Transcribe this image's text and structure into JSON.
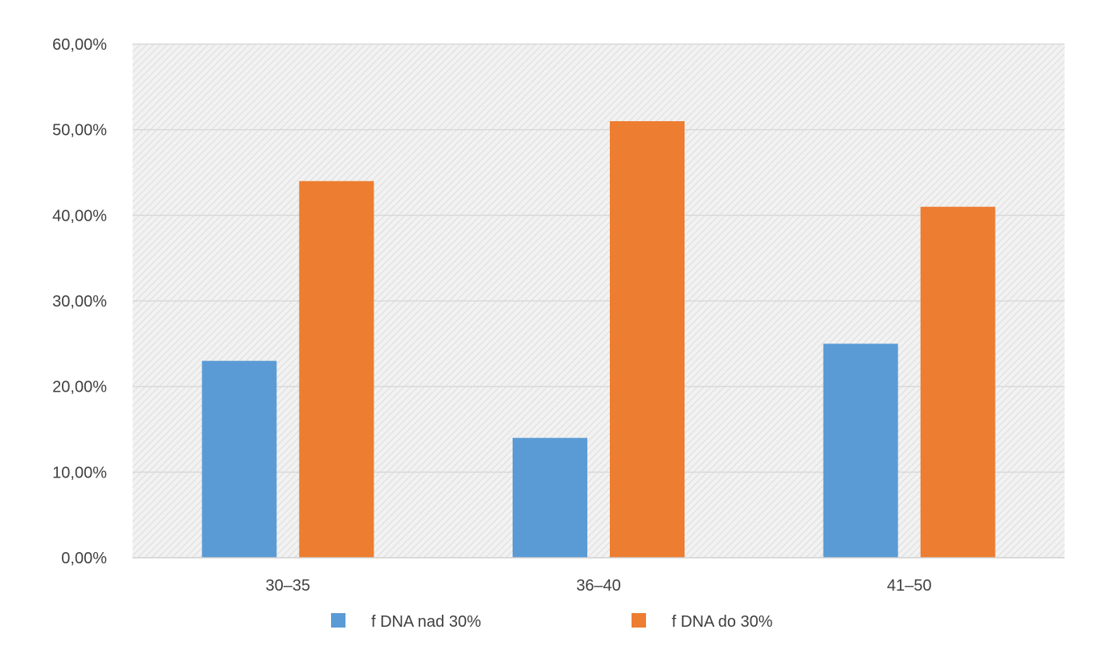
{
  "chart_data": {
    "type": "bar",
    "title": "",
    "xlabel": "",
    "ylabel": "",
    "categories": [
      "30–35",
      "36–40",
      "41–50"
    ],
    "series": [
      {
        "name": "f DNA nad 30%",
        "color": "#5b9bd5",
        "values": [
          23.0,
          14.0,
          25.0
        ]
      },
      {
        "name": "f DNA do 30%",
        "color": "#ed7d31",
        "values": [
          44.0,
          51.0,
          41.0
        ]
      }
    ],
    "ylim": [
      0,
      60
    ],
    "yticks": [
      0,
      10,
      20,
      30,
      40,
      50,
      60
    ],
    "ytick_labels": [
      "0,00%",
      "10,00%",
      "20,00%",
      "30,00%",
      "40,00%",
      "50,00%",
      "60,00%"
    ],
    "grid": true,
    "plot_background": "hatched light gray",
    "legend_position": "bottom"
  }
}
